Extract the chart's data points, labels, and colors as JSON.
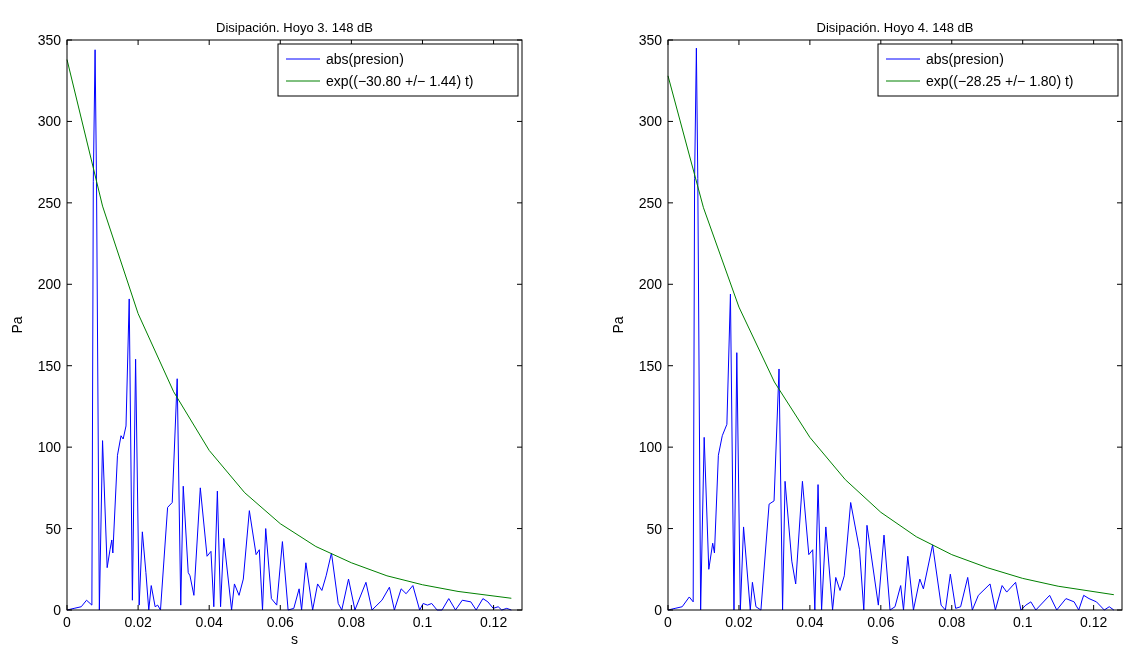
{
  "chart_data": [
    {
      "type": "line",
      "title": "Disipación. Hoyo 3. 148 dB",
      "xlabel": "s",
      "ylabel": "Pa",
      "xlim": [
        0,
        0.128
      ],
      "ylim": [
        0,
        350
      ],
      "xticks": [
        0,
        0.02,
        0.04,
        0.06,
        0.08,
        0.1,
        0.12
      ],
      "yticks": [
        0,
        50,
        100,
        150,
        200,
        250,
        300,
        350
      ],
      "legend": "top right",
      "grid": false,
      "series": [
        {
          "name": "abs(presion)",
          "color": "#0000ff",
          "x": [
            0,
            0.002,
            0.004,
            0.0055,
            0.007,
            0.0074,
            0.0079,
            0.0083,
            0.0091,
            0.01,
            0.0113,
            0.0121,
            0.0126,
            0.0129,
            0.0142,
            0.0152,
            0.0158,
            0.0166,
            0.0175,
            0.0184,
            0.0193,
            0.0203,
            0.0212,
            0.0222,
            0.023,
            0.0237,
            0.0248,
            0.0255,
            0.0263,
            0.0283,
            0.0296,
            0.031,
            0.032,
            0.0327,
            0.0341,
            0.0346,
            0.0357,
            0.0375,
            0.0394,
            0.0405,
            0.0413,
            0.0423,
            0.0432,
            0.0441,
            0.0463,
            0.0471,
            0.0484,
            0.0496,
            0.0513,
            0.0532,
            0.0541,
            0.055,
            0.0559,
            0.0575,
            0.059,
            0.0606,
            0.0622,
            0.0638,
            0.0653,
            0.066,
            0.0672,
            0.0691,
            0.0705,
            0.0717,
            0.0729,
            0.0744,
            0.0763,
            0.0773,
            0.0792,
            0.081,
            0.0841,
            0.0858,
            0.0872,
            0.0886,
            0.0907,
            0.0921,
            0.094,
            0.0954,
            0.0973,
            0.0992,
            0.1002,
            0.1014,
            0.1026,
            0.1041,
            0.1055,
            0.1074,
            0.1093,
            0.1112,
            0.1136,
            0.1151,
            0.117,
            0.1184,
            0.1199,
            0.1213,
            0.1223,
            0.1237,
            0.125
          ],
          "values": [
            0,
            1,
            2,
            6,
            3,
            263,
            344,
            263,
            0,
            104,
            26,
            37,
            43,
            35,
            95,
            107,
            105,
            113,
            191,
            6,
            154,
            3,
            48,
            23,
            0,
            15,
            2,
            3,
            0,
            63,
            66,
            142,
            3,
            76,
            23,
            21,
            9,
            75,
            33,
            36,
            2,
            73,
            2,
            44,
            0,
            16,
            9,
            19,
            61,
            34,
            37,
            0,
            50,
            7,
            3,
            42,
            0,
            1,
            13,
            0,
            29,
            0,
            16,
            12,
            21,
            35,
            4,
            0,
            19,
            0,
            17,
            0,
            3,
            6,
            14,
            0,
            13,
            10,
            15,
            0,
            4,
            3,
            4,
            0,
            0,
            7,
            0,
            6,
            5,
            0,
            7,
            5,
            1,
            2,
            0,
            1,
            0
          ]
        },
        {
          "name": "exp((−30.80 +/− 1.44) t)",
          "color": "#008000",
          "x": [
            0,
            0.01,
            0.02,
            0.03,
            0.04,
            0.05,
            0.06,
            0.07,
            0.08,
            0.09,
            0.1,
            0.11,
            0.125
          ],
          "values": [
            338,
            248,
            182,
            134,
            98,
            72,
            53,
            39,
            29,
            21,
            15.5,
            11.4,
            7.2
          ]
        }
      ]
    },
    {
      "type": "line",
      "title": "Disipación. Hoyo 4. 148 dB",
      "xlabel": "s",
      "ylabel": "Pa",
      "xlim": [
        0,
        0.128
      ],
      "ylim": [
        0,
        350
      ],
      "xticks": [
        0,
        0.02,
        0.04,
        0.06,
        0.08,
        0.1,
        0.12
      ],
      "yticks": [
        0,
        50,
        100,
        150,
        200,
        250,
        300,
        350
      ],
      "legend": "top right",
      "grid": false,
      "series": [
        {
          "name": "abs(presion)",
          "color": "#0000ff",
          "x": [
            0,
            0.002,
            0.004,
            0.006,
            0.0071,
            0.0075,
            0.008,
            0.0084,
            0.0092,
            0.0102,
            0.0115,
            0.0126,
            0.0131,
            0.0142,
            0.0153,
            0.0166,
            0.0176,
            0.0186,
            0.0194,
            0.0204,
            0.0213,
            0.0232,
            0.0238,
            0.0248,
            0.0262,
            0.0285,
            0.0299,
            0.0313,
            0.0323,
            0.033,
            0.0349,
            0.036,
            0.0379,
            0.0397,
            0.0408,
            0.0414,
            0.0423,
            0.0433,
            0.0445,
            0.0464,
            0.0473,
            0.0485,
            0.0497,
            0.0515,
            0.054,
            0.0552,
            0.0561,
            0.0593,
            0.0609,
            0.0626,
            0.064,
            0.0656,
            0.0664,
            0.0676,
            0.0692,
            0.071,
            0.072,
            0.0746,
            0.077,
            0.0782,
            0.0796,
            0.0811,
            0.0825,
            0.0845,
            0.0858,
            0.0875,
            0.0908,
            0.0923,
            0.0942,
            0.0955,
            0.098,
            0.0995,
            0.1009,
            0.1023,
            0.1037,
            0.1076,
            0.1096,
            0.1122,
            0.1145,
            0.1158,
            0.1172,
            0.1187,
            0.1208,
            0.123,
            0.1244,
            0.1257
          ],
          "values": [
            0,
            1,
            2,
            8,
            5,
            265,
            345,
            265,
            0,
            106,
            25,
            41,
            35,
            95,
            107,
            114,
            194,
            0,
            158,
            0,
            51,
            0,
            17,
            2,
            0,
            65,
            67,
            148,
            0,
            79,
            30,
            16,
            79,
            34,
            37,
            0,
            77,
            0,
            51,
            0,
            20,
            12,
            21,
            66,
            37,
            0,
            52,
            3,
            46,
            0,
            2,
            15,
            0,
            33,
            0,
            19,
            13,
            40,
            3,
            0,
            22,
            1,
            2,
            20,
            0,
            9,
            16,
            0,
            15,
            11,
            17,
            0,
            3,
            5,
            0,
            9,
            0,
            7,
            5,
            0,
            9,
            7,
            5,
            0,
            2,
            0
          ]
        },
        {
          "name": "exp((−28.25 +/− 1.80) t)",
          "color": "#008000",
          "x": [
            0,
            0.01,
            0.02,
            0.03,
            0.04,
            0.05,
            0.06,
            0.07,
            0.08,
            0.09,
            0.1,
            0.11,
            0.1257
          ],
          "values": [
            328,
            247,
            186,
            140,
            106,
            80,
            60,
            45,
            34,
            26,
            19.4,
            14.6,
            9.4
          ]
        }
      ]
    }
  ]
}
